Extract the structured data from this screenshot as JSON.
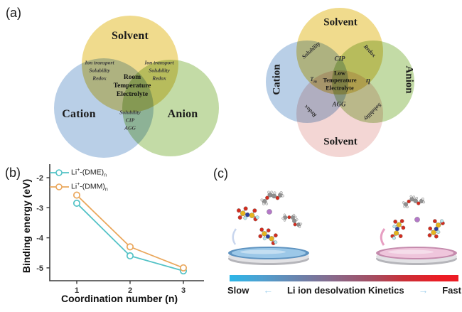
{
  "panel_a": {
    "label": "(a)",
    "venn3": {
      "top": "Solvent",
      "left": "Cation",
      "right": "Anion",
      "overlap_left": "Ion transport\nSolubility\nRedox",
      "overlap_right": "Ion transport\nSolubility\nRedox",
      "overlap_bottom": "Solubility\nCIP\nAGG",
      "center": "Room\nTemperature\nElectrolyte"
    },
    "venn4": {
      "top": "Solvent",
      "bottom": "Solvent",
      "left": "Cation",
      "right": "Anion",
      "top_left": "Solubility",
      "top_right": "Redox",
      "bottom_left": "Redox",
      "bottom_right": "Solubility",
      "top_center": "CIP",
      "bottom_center": "AGG",
      "left_center_base": "T",
      "left_center_sub": "m",
      "right_center": "η",
      "center": "Low\nTemperature\nElectrolyte"
    },
    "colors": {
      "solvent_yellow": "#F0DB8D",
      "cation_blue": "#B9CFE7",
      "anion_green": "#C3DBA6",
      "solvent_pink": "#F3D6D4"
    }
  },
  "panel_b": {
    "label": "(b)"
  },
  "chart_data": {
    "type": "line",
    "title": "",
    "x": [
      1,
      2,
      3
    ],
    "xlabel": "Coordination number (n)",
    "ylabel": "Binding energy (eV)",
    "yticks": [
      -2,
      -3,
      -4,
      -5
    ],
    "ylim": [
      -5.6,
      -1.6
    ],
    "grid": false,
    "legend_position": "top-left",
    "series": [
      {
        "name": "Li⁺-(DME)ₙ",
        "parts": {
          "pre": "Li",
          "sup": "+",
          "mid": "-(DME)",
          "sub": "n"
        },
        "color": "#53C2C6",
        "values": [
          -2.85,
          -4.6,
          -5.1
        ]
      },
      {
        "name": "Li⁺-(DMM)ₙ",
        "parts": {
          "pre": "Li",
          "sup": "+",
          "mid": "-(DMM)",
          "sub": "n"
        },
        "color": "#EAA75C",
        "values": [
          -2.58,
          -4.3,
          -5.0
        ]
      }
    ]
  },
  "panel_c": {
    "label": "(c)",
    "caption": {
      "slow": "Slow",
      "label": "Li ion desolvation Kinetics",
      "fast": "Fast",
      "left_arrow": "←",
      "right_arrow": "→",
      "arrow_color": "#9FCFEC"
    },
    "gradient_stops": [
      "#2BB6E8",
      "#4FA0D0",
      "#6E7FA8",
      "#8A6889",
      "#A34E63",
      "#C93038",
      "#EC1C24"
    ],
    "dish_colors": {
      "left_liquid": "#9CC8E8",
      "left_rim": "#5E93C0",
      "right_liquid": "#EFC6DC",
      "right_rim": "#C58BAD"
    },
    "atom_colors": {
      "carbon": "#8F8F8F",
      "hydrogen": "#E3E3E3",
      "oxygen": "#D32C1E",
      "sulfur": "#E6B41E",
      "nitrogen": "#2B3F9E",
      "fluorine": "#B5E8F0",
      "lithium": "#B478C8"
    }
  }
}
